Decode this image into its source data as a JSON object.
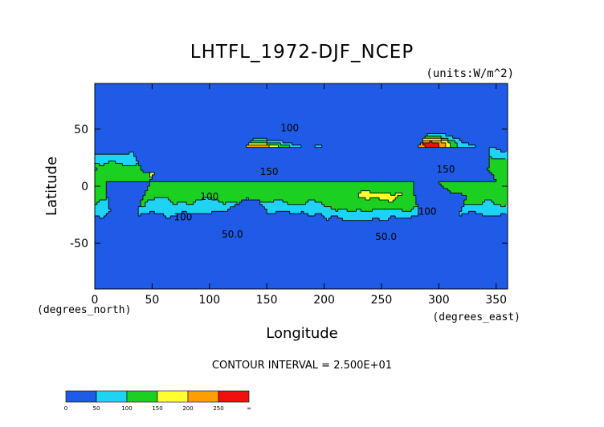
{
  "chart_data": {
    "type": "heatmap",
    "title": "LHTFL_1972-DJF_NCEP",
    "units_label": "(units:W/m^2)",
    "xlabel": "Longitude",
    "ylabel": "Latitude",
    "x_unit_note": "(degrees_east)",
    "y_unit_note": "(degrees_north)",
    "xlim": [
      0,
      360
    ],
    "ylim": [
      -90,
      90
    ],
    "x_ticks": [
      0,
      50,
      100,
      150,
      200,
      250,
      300,
      350
    ],
    "y_ticks": [
      -50,
      0,
      50
    ],
    "contour_interval_text": "CONTOUR INTERVAL = 2.500E+01",
    "contour_labels": [
      {
        "text": "100",
        "lon": 170,
        "lat": 48
      },
      {
        "text": "150",
        "lon": 152,
        "lat": 10
      },
      {
        "text": "150",
        "lon": 306,
        "lat": 12
      },
      {
        "text": "100",
        "lon": 100,
        "lat": -12
      },
      {
        "text": "100",
        "lon": 77,
        "lat": -30
      },
      {
        "text": "50.0",
        "lon": 120,
        "lat": -45
      },
      {
        "text": "50.0",
        "lon": 254,
        "lat": -47
      },
      {
        "text": "100",
        "lon": 290,
        "lat": -25
      }
    ],
    "colorbar": {
      "levels": [
        "0",
        "50",
        "100",
        "150",
        "200",
        "250",
        "∞"
      ],
      "colors": [
        "#1f5be6",
        "#1fd3f4",
        "#1bd020",
        "#ffff30",
        "#ff9e00",
        "#f01010"
      ]
    },
    "bands": [
      "0-50",
      "50-100",
      "100-150",
      "150-200",
      "200-250",
      ">250"
    ],
    "colors": {
      "ocean_low": "#1f5be6",
      "land": "#1f5be6",
      "background": "#ffffff"
    }
  }
}
